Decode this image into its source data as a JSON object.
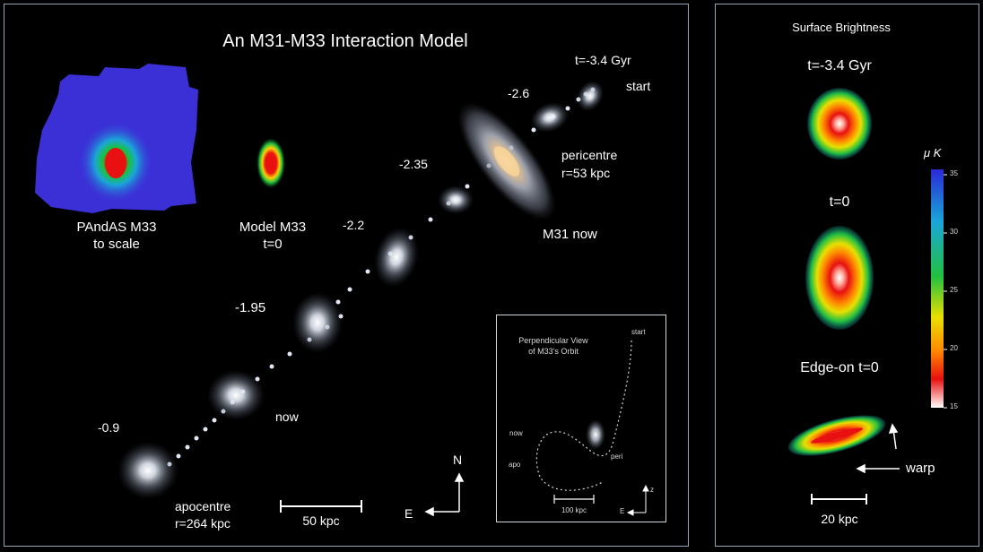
{
  "main": {
    "title": "An M31-M33 Interaction Model",
    "pandas_label": [
      "PAndAS M33",
      "to scale"
    ],
    "model_label": [
      "Model M33",
      "t=0"
    ],
    "time_labels": {
      "t_start": "t=-3.4 Gyr",
      "start": "start",
      "t_2_6": "-2.6",
      "t_2_35": "-2.35",
      "t_2_2": "-2.2",
      "t_1_95": "-1.95",
      "t_0_9": "-0.9",
      "now": "now"
    },
    "pericentre": [
      "pericentre",
      "r=53 kpc"
    ],
    "m31_now": "M31 now",
    "apocentre": [
      "apocentre",
      "r=264 kpc"
    ],
    "scale_bar": "50 kpc",
    "compass": {
      "north": "N",
      "east": "E"
    }
  },
  "inset": {
    "title": [
      "Perpendicular View",
      "of M33's Orbit"
    ],
    "start": "start",
    "now": "now",
    "apo": "apo",
    "peri": "peri",
    "scale_bar": "100 kpc",
    "compass": {
      "z": "z",
      "east": "E"
    }
  },
  "side": {
    "title": "Surface Brightness",
    "t_start": "t=-3.4 Gyr",
    "t_zero": "t=0",
    "edge_on": "Edge-on t=0",
    "warp": "warp",
    "scale_bar": "20 kpc",
    "colorbar": {
      "label": "μ K",
      "ticks": [
        "35",
        "30",
        "25",
        "20",
        "15"
      ]
    }
  },
  "colors": {
    "border": "#8fa6b7",
    "pandas_field": "#3b2fd6",
    "heat_red": "#e81010",
    "heat_green": "#22c040",
    "galaxy_glow": "#d8e4f4"
  }
}
